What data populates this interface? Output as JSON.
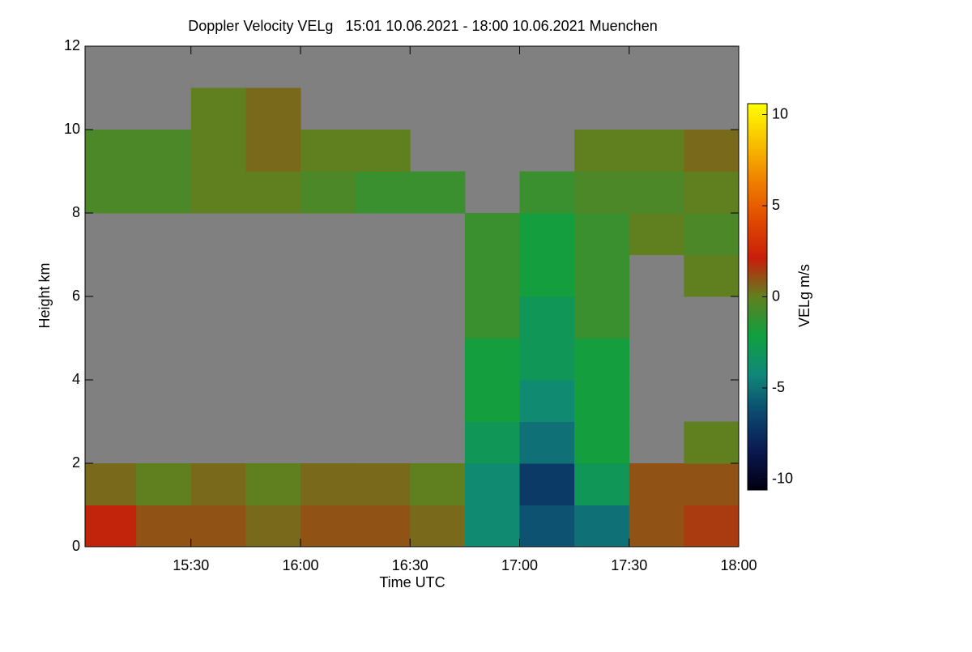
{
  "chart_data": {
    "type": "heatmap",
    "title": "Doppler Velocity VELg   15:01 10.06.2021 - 18:00 10.06.2021 Muenchen",
    "x_label": "Time UTC",
    "y_label": "Height km",
    "colorbar_label": "VELg m/s",
    "xlim": [
      15.0167,
      18.0
    ],
    "ylim": [
      0,
      12
    ],
    "xticks": [
      {
        "value": 15.5,
        "label": "15:30"
      },
      {
        "value": 16,
        "label": "16:00"
      },
      {
        "value": 16.5,
        "label": "16:30"
      },
      {
        "value": 17,
        "label": "17:00"
      },
      {
        "value": 17.5,
        "label": "17:30"
      },
      {
        "value": 18,
        "label": "18:00"
      }
    ],
    "yticks": [
      0,
      2,
      4,
      6,
      8,
      10,
      12
    ],
    "x_bins": [
      15.0167,
      15.25,
      15.5,
      15.75,
      16,
      16.25,
      16.5,
      16.75,
      17,
      17.25,
      17.5,
      17.75,
      18.0
    ],
    "y_bins": [
      0,
      1,
      2,
      3,
      4,
      5,
      6,
      7,
      8,
      9,
      10,
      11,
      12
    ],
    "z": [
      [
        2,
        1,
        1,
        0.5,
        1,
        1,
        0.5,
        -4,
        -6,
        -5,
        1,
        1.5
      ],
      [
        0.5,
        0,
        0.5,
        0,
        0.5,
        0.5,
        0,
        -4,
        -7,
        -3,
        1,
        1
      ],
      [
        null,
        null,
        null,
        null,
        null,
        null,
        null,
        -3,
        -5,
        -2,
        null,
        0
      ],
      [
        null,
        null,
        null,
        null,
        null,
        null,
        null,
        -2,
        -4,
        -2,
        null,
        null
      ],
      [
        null,
        null,
        null,
        null,
        null,
        null,
        null,
        -2,
        -3,
        -2,
        null,
        null
      ],
      [
        null,
        null,
        null,
        null,
        null,
        null,
        null,
        -1,
        -3,
        -1,
        null,
        null
      ],
      [
        null,
        null,
        null,
        null,
        null,
        null,
        null,
        -1,
        -2,
        -1,
        null,
        0
      ],
      [
        null,
        null,
        null,
        null,
        null,
        null,
        null,
        -1,
        -2,
        -1,
        0,
        -0.5
      ],
      [
        -0.5,
        -0.5,
        0,
        0,
        -0.5,
        -1,
        -1,
        null,
        -1,
        -0.5,
        -0.5,
        0
      ],
      [
        -0.5,
        -0.5,
        0,
        0.5,
        0,
        0,
        null,
        null,
        null,
        0,
        0,
        0.5
      ],
      [
        null,
        null,
        0,
        0.5,
        null,
        null,
        null,
        null,
        null,
        null,
        null,
        null
      ],
      [
        null,
        null,
        null,
        null,
        null,
        null,
        null,
        null,
        null,
        null,
        null,
        null
      ]
    ],
    "zlim": [
      -10.6,
      10.6
    ],
    "zticks": [
      -10,
      -5,
      0,
      5,
      10
    ],
    "colormap": [
      "#000010",
      "#0a1850",
      "#0c4870",
      "#108878",
      "#10a040",
      "#608020",
      "#c81e0a",
      "#e04a00",
      "#f08000",
      "#f8c000",
      "#ffff00"
    ],
    "no_data_color": "#808080"
  }
}
